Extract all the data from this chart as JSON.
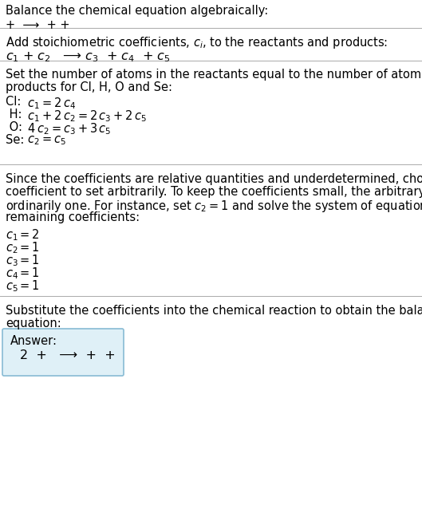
{
  "title": "Balance the chemical equation algebraically:",
  "line1": "+  ⟶  + +",
  "section2_header": "Add stoichiometric coefficients, $c_i$, to the reactants and products:",
  "section2_equation": "$c_1$ + $c_2$   ⟶ $c_3$  + $c_4$  + $c_5$",
  "section3_header_1": "Set the number of atoms in the reactants equal to the number of atoms in the",
  "section3_header_2": "products for Cl, H, O and Se:",
  "section3_lines": [
    [
      "Cl: ",
      " $c_1 = 2\\,c_4$"
    ],
    [
      " H: ",
      " $c_1 + 2\\,c_2 = 2\\,c_3 + 2\\,c_5$"
    ],
    [
      " O: ",
      " $4\\,c_2 = c_3 + 3\\,c_5$"
    ],
    [
      "Se: ",
      " $c_2 = c_5$"
    ]
  ],
  "section4_header": "Since the coefficients are relative quantities and underdetermined, choose a\ncoefficient to set arbitrarily. To keep the coefficients small, the arbitrary value is\nordinarily one. For instance, set $c_2 = 1$ and solve the system of equations for the\nremaining coefficients:",
  "section4_lines": [
    "$c_1 = 2$",
    "$c_2 = 1$",
    "$c_3 = 1$",
    "$c_4 = 1$",
    "$c_5 = 1$"
  ],
  "section5_header_1": "Substitute the coefficients into the chemical reaction to obtain the balanced",
  "section5_header_2": "equation:",
  "answer_label": "Answer:",
  "answer_equation": "2  +   ⟶  +  +",
  "bg_color": "#ffffff",
  "answer_box_facecolor": "#dff0f7",
  "answer_box_edgecolor": "#88bbd4",
  "text_color": "#000000",
  "separator_color": "#aaaaaa",
  "body_fontsize": 10.5,
  "eq_fontsize": 11
}
